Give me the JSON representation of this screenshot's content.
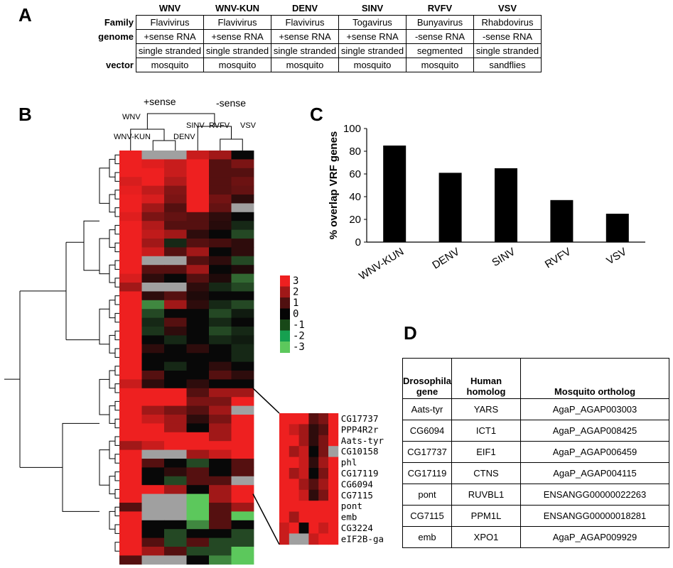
{
  "panels": {
    "a": "A",
    "b": "B",
    "c": "C",
    "d": "D"
  },
  "panel_a": {
    "viruses": [
      "WNV",
      "WNV-KUN",
      "DENV",
      "SINV",
      "RVFV",
      "VSV"
    ],
    "rows": [
      {
        "label": "Family",
        "cells": [
          "Flavivirus",
          "Flavivirus",
          "Flavivirus",
          "Togavirus",
          "Bunyavirus",
          "Rhabdovirus"
        ]
      },
      {
        "label": "genome",
        "cells": [
          "+sense RNA",
          "+sense RNA",
          "+sense RNA",
          "+sense RNA",
          "-sense RNA",
          "-sense RNA"
        ]
      },
      {
        "label": "",
        "cells": [
          "single stranded",
          "single stranded",
          "single stranded",
          "single stranded",
          "segmented",
          "single stranded"
        ]
      },
      {
        "label": "vector",
        "cells": [
          "mosquito",
          "mosquito",
          "mosquito",
          "mosquito",
          "mosquito",
          "sandflies"
        ]
      }
    ]
  },
  "panel_b": {
    "group_labels": {
      "pos": "+sense",
      "neg": "-sense"
    },
    "column_labels": [
      "WNV",
      "WNV-KUN",
      "DENV",
      "SINV",
      "RVFV",
      "VSV"
    ],
    "legend": [
      "3",
      "2",
      "1",
      "0",
      "-1",
      "-2",
      "-3"
    ],
    "legend_colors": [
      "#ee2020",
      "#a01818",
      "#501010",
      "#050505",
      "#184818",
      "#16a050",
      "#5cc85c"
    ],
    "heatmap": [
      [
        3,
        "NA",
        "NA",
        2.5,
        2,
        0
      ],
      [
        3,
        2.8,
        2.5,
        3,
        1,
        1.5
      ],
      [
        3,
        3,
        2.5,
        3,
        1,
        1
      ],
      [
        2.7,
        3,
        2.2,
        3,
        1,
        1.3
      ],
      [
        2.9,
        2.4,
        1.6,
        3,
        1,
        1.2
      ],
      [
        3,
        2.7,
        1.5,
        3,
        1.4,
        0.5
      ],
      [
        3,
        2,
        1,
        3,
        1.2,
        "NA"
      ],
      [
        2.8,
        1.5,
        1.2,
        1,
        0.5,
        0
      ],
      [
        3,
        2.2,
        1,
        1,
        0.4,
        -0.5
      ],
      [
        3,
        2.4,
        2,
        0.5,
        0,
        -1
      ],
      [
        3,
        2,
        -0.5,
        1,
        0.8,
        0.5
      ],
      [
        3,
        2.5,
        1,
        2,
        0,
        0.5
      ],
      [
        3,
        "NA",
        "NA",
        1,
        0.5,
        -1
      ],
      [
        3,
        1,
        1,
        2,
        0,
        0.3
      ],
      [
        2.7,
        0.5,
        0,
        1,
        0.3,
        -1.5
      ],
      [
        2,
        "NA",
        "NA",
        0.5,
        -0.5,
        -1
      ],
      [
        3,
        0.5,
        1,
        0.3,
        0,
        0
      ],
      [
        3,
        -2,
        2,
        0.5,
        -0.5,
        -1
      ],
      [
        3,
        -1,
        0,
        0,
        -1,
        -0.3
      ],
      [
        3,
        -0.5,
        1,
        0,
        -0.5,
        0
      ],
      [
        3,
        -0.7,
        0.5,
        0,
        -1,
        -0.5
      ],
      [
        3,
        0,
        -0.5,
        0,
        -0.5,
        -0.3
      ],
      [
        3,
        0.5,
        0,
        0.5,
        0,
        -0.5
      ],
      [
        3,
        0,
        0,
        0,
        0,
        -0.5
      ],
      [
        3,
        0,
        -0.5,
        0,
        0.5,
        0
      ],
      [
        3,
        1,
        0,
        0,
        1,
        0.5
      ],
      [
        2.5,
        0.5,
        0,
        0.5,
        0,
        0
      ],
      [
        3,
        3,
        3,
        1,
        2,
        2
      ],
      [
        3,
        3,
        3,
        1.5,
        1.5,
        3
      ],
      [
        3,
        2,
        1.5,
        1,
        2,
        "NA"
      ],
      [
        3,
        2.5,
        2,
        0.5,
        1.5,
        3
      ],
      [
        3,
        3,
        2,
        0,
        2,
        3
      ],
      [
        3,
        3,
        3,
        3,
        2,
        3
      ],
      [
        2,
        2.5,
        3,
        3,
        3,
        3
      ],
      [
        3,
        "NA",
        "NA",
        2,
        2.5,
        3
      ],
      [
        3,
        1,
        0,
        -1,
        0,
        1
      ],
      [
        3,
        0,
        0.5,
        1,
        0,
        1
      ],
      [
        3,
        0,
        -1,
        1,
        1,
        "NA"
      ],
      [
        3,
        3,
        2,
        0,
        2,
        3
      ],
      [
        3,
        "NA",
        "NA",
        -3,
        2,
        3
      ],
      [
        1,
        "NA",
        "NA",
        -3,
        1,
        2
      ],
      [
        3,
        "NA",
        "NA",
        -3,
        1,
        -3
      ],
      [
        3,
        0,
        0,
        -2,
        1,
        0
      ],
      [
        3,
        0,
        -1,
        0,
        0,
        -1
      ],
      [
        3,
        1,
        -1,
        1,
        -1,
        -1
      ],
      [
        3,
        2,
        1,
        -1,
        -1,
        -3
      ],
      [
        1,
        "NA",
        "NA",
        0,
        -2,
        -3
      ]
    ],
    "zoom_genes": [
      "CG17737",
      "PPP4R2r",
      "Aats-tyr",
      "CG10158",
      "phl",
      "CG17119",
      "CG6094",
      "CG7115",
      "pont",
      "emb",
      "CG3224",
      "eIF2B-ga"
    ],
    "zoom_heatmap": [
      [
        3,
        3,
        3,
        1,
        1.5,
        3
      ],
      [
        3,
        2.5,
        2,
        0.5,
        1,
        3
      ],
      [
        3,
        3,
        2,
        0.5,
        1.5,
        3
      ],
      [
        3,
        2,
        2.5,
        0,
        1.5,
        "NA"
      ],
      [
        3,
        3,
        2.5,
        0.5,
        2,
        3
      ],
      [
        3,
        2,
        2.5,
        0,
        1.5,
        3
      ],
      [
        3,
        3,
        2,
        1,
        2,
        3
      ],
      [
        3,
        3,
        2.5,
        0.5,
        1.5,
        3
      ],
      [
        3,
        3,
        3,
        3,
        3,
        3
      ],
      [
        3,
        2,
        3,
        3,
        3,
        3
      ],
      [
        2.5,
        3,
        0,
        3,
        2.5,
        3
      ],
      [
        2.5,
        "NA",
        "NA",
        2.5,
        3,
        3
      ]
    ]
  },
  "chart_data": {
    "type": "bar",
    "categories": [
      "WNV-KUN",
      "DENV",
      "SINV",
      "RVFV",
      "VSV"
    ],
    "values": [
      85,
      61,
      65,
      37,
      25
    ],
    "title": "",
    "xlabel": "",
    "ylabel": "% overlap VRF genes",
    "ylim": [
      0,
      100
    ],
    "yticks": [
      "0",
      "20",
      "40",
      "60",
      "80",
      "100"
    ],
    "grid": false,
    "bar_color": "#000000"
  },
  "panel_d": {
    "headers": [
      "Drosophila gene",
      "Human homolog",
      "Mosquito ortholog"
    ],
    "rows": [
      [
        "Aats-tyr",
        "YARS",
        "AgaP_AGAP003003"
      ],
      [
        "CG6094",
        "ICT1",
        "AgaP_AGAP008425"
      ],
      [
        "CG17737",
        "EIF1",
        "AgaP_AGAP006459"
      ],
      [
        "CG17119",
        "CTNS",
        "AgaP_AGAP004115"
      ],
      [
        "pont",
        "RUVBL1",
        "ENSANGG00000022263"
      ],
      [
        "CG7115",
        "PPM1L",
        "ENSANGG00000018281"
      ],
      [
        "emb",
        "XPO1",
        "AgaP_AGAP009929"
      ]
    ]
  }
}
